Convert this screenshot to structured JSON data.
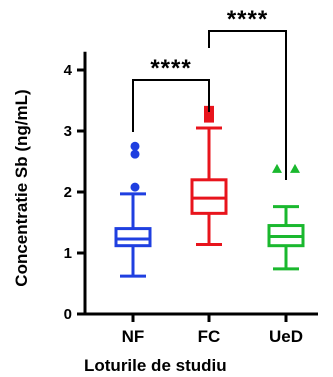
{
  "chart_data": {
    "type": "box",
    "ylabel": "Concentratie Sb (ng/mL)",
    "xlabel": "Loturile de studiu",
    "ylim": [
      0,
      4.3
    ],
    "y_ticks": [
      "0",
      "1",
      "2",
      "3",
      "4"
    ],
    "y_tick_values": [
      0,
      1,
      2,
      3,
      4
    ],
    "grid": false,
    "categories": [
      "NF",
      "FC",
      "UeD"
    ],
    "series": [
      {
        "category": "NF",
        "color": "#1f3fe0",
        "marker": "circle",
        "whisker_low": 0.62,
        "q1": 1.12,
        "median": 1.23,
        "q3": 1.4,
        "whisker_high": 1.97,
        "outliers": [
          2.08,
          2.62,
          2.75
        ]
      },
      {
        "category": "FC",
        "color": "#e8141c",
        "marker": "square",
        "whisker_low": 1.14,
        "q1": 1.65,
        "median": 1.9,
        "q3": 2.2,
        "whisker_high": 3.05,
        "outliers": [
          3.22,
          3.27,
          3.33
        ]
      },
      {
        "category": "UeD",
        "color": "#1ab82e",
        "marker": "triangle",
        "whisker_low": 0.74,
        "q1": 1.12,
        "median": 1.27,
        "q3": 1.45,
        "whisker_high": 1.76,
        "outliers": [
          2.38,
          2.38
        ]
      }
    ],
    "significance": [
      {
        "from": "NF",
        "to": "FC",
        "label": "****"
      },
      {
        "from": "FC",
        "to": "UeD",
        "label": "****"
      }
    ]
  }
}
